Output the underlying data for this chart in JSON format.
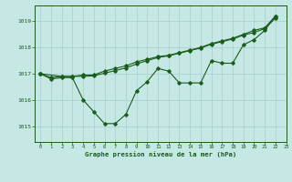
{
  "background_color": "#c5e8e5",
  "grid_color": "#a8cece",
  "line_color": "#1a5c1a",
  "text_color": "#1a5c1a",
  "xlabel": "Graphe pression niveau de la mer (hPa)",
  "ylim": [
    1014.4,
    1019.6
  ],
  "xlim": [
    -0.5,
    23
  ],
  "yticks": [
    1015,
    1016,
    1017,
    1018,
    1019
  ],
  "xticks": [
    0,
    1,
    2,
    3,
    4,
    5,
    6,
    7,
    8,
    9,
    10,
    11,
    12,
    13,
    14,
    15,
    16,
    17,
    18,
    19,
    20,
    21,
    22,
    23
  ],
  "s1_x": [
    0,
    1,
    2,
    3,
    4,
    5,
    6,
    7,
    8,
    9,
    10,
    11,
    12,
    13,
    14,
    15,
    16,
    17,
    18,
    19,
    20,
    21,
    22
  ],
  "s1_y": [
    1017.0,
    1016.8,
    1016.85,
    1016.85,
    1016.0,
    1015.55,
    1015.1,
    1015.1,
    1015.45,
    1016.35,
    1016.7,
    1017.2,
    1017.1,
    1016.65,
    1016.65,
    1016.65,
    1017.5,
    1017.4,
    1017.4,
    1018.1,
    1018.3,
    1018.65,
    1019.2
  ],
  "s2_x": [
    0,
    2,
    3,
    4,
    5,
    6,
    7,
    8,
    9,
    10,
    11,
    12,
    13,
    14,
    15,
    16,
    17,
    18,
    19,
    20,
    21,
    22
  ],
  "s2_y": [
    1017.0,
    1016.9,
    1016.9,
    1016.95,
    1016.95,
    1017.1,
    1017.2,
    1017.3,
    1017.45,
    1017.55,
    1017.65,
    1017.7,
    1017.8,
    1017.9,
    1018.0,
    1018.15,
    1018.25,
    1018.35,
    1018.5,
    1018.65,
    1018.75,
    1019.2
  ],
  "s3_x": [
    0,
    1,
    2,
    3,
    4,
    5,
    6,
    7,
    8,
    9,
    10,
    11,
    12,
    13,
    14,
    15,
    16,
    17,
    18,
    19,
    20,
    21,
    22
  ],
  "s3_y": [
    1017.0,
    1016.85,
    1016.9,
    1016.9,
    1016.9,
    1016.92,
    1017.02,
    1017.12,
    1017.22,
    1017.37,
    1017.5,
    1017.62,
    1017.68,
    1017.78,
    1017.88,
    1017.98,
    1018.12,
    1018.22,
    1018.32,
    1018.47,
    1018.57,
    1018.72,
    1019.12
  ]
}
